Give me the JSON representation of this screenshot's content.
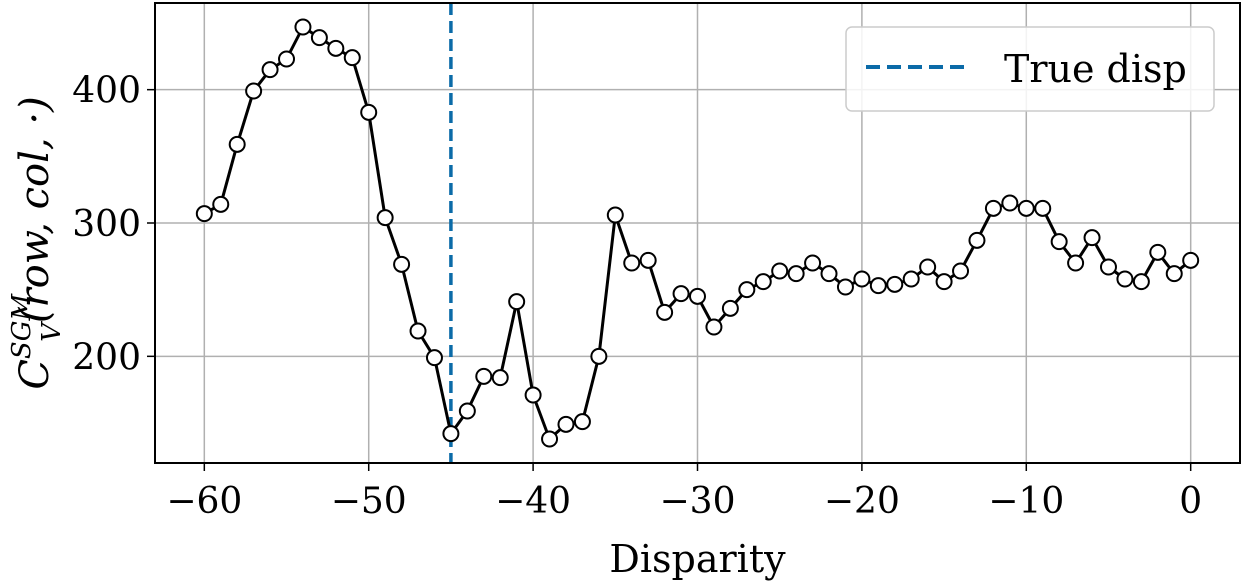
{
  "chart_data": {
    "type": "line",
    "xlabel": "Disparity",
    "ylabel": {
      "main": "C",
      "superscript": "SGM",
      "subscript": "V",
      "args": "(row,  col,  ·)"
    },
    "xlim": [
      -63,
      3
    ],
    "ylim": [
      120,
      465
    ],
    "xticks": [
      -60,
      -50,
      -40,
      -30,
      -20,
      -10,
      0
    ],
    "xtick_labels": [
      "−60",
      "−50",
      "−40",
      "−30",
      "−20",
      "−10",
      "0"
    ],
    "yticks": [
      200,
      300,
      400
    ],
    "ytick_labels": [
      "200",
      "300",
      "400"
    ],
    "grid": true,
    "legend_position": "top-right",
    "series": [
      {
        "color": "#000000",
        "marker": "hollow-circle",
        "x": [
          -60,
          -59,
          -58,
          -57,
          -56,
          -55,
          -54,
          -53,
          -52,
          -51,
          -50,
          -49,
          -48,
          -47,
          -46,
          -45,
          -44,
          -43,
          -42,
          -41,
          -40,
          -39,
          -38,
          -37,
          -36,
          -35,
          -34,
          -33,
          -32,
          -31,
          -30,
          -29,
          -28,
          -27,
          -26,
          -25,
          -24,
          -23,
          -22,
          -21,
          -20,
          -19,
          -18,
          -17,
          -16,
          -15,
          -14,
          -13,
          -12,
          -11,
          -10,
          -9,
          -8,
          -7,
          -6,
          -5,
          -4,
          -3,
          -2,
          -1,
          0
        ],
        "y": [
          307,
          314,
          359,
          399,
          415,
          423,
          447,
          439,
          431,
          424,
          383,
          304,
          269,
          219,
          199,
          142,
          159,
          185,
          184,
          241,
          171,
          138,
          149,
          151,
          200,
          306,
          270,
          272,
          233,
          247,
          245,
          222,
          236,
          250,
          256,
          264,
          262,
          270,
          262,
          252,
          258,
          253,
          254,
          258,
          267,
          256,
          264,
          287,
          311,
          315,
          311,
          311,
          286,
          270,
          289,
          267,
          258,
          256,
          278,
          262,
          272
        ]
      }
    ],
    "reference_line": {
      "label": "True disp",
      "x": -45,
      "color": "#0b6ba8",
      "style": "dashed"
    }
  }
}
